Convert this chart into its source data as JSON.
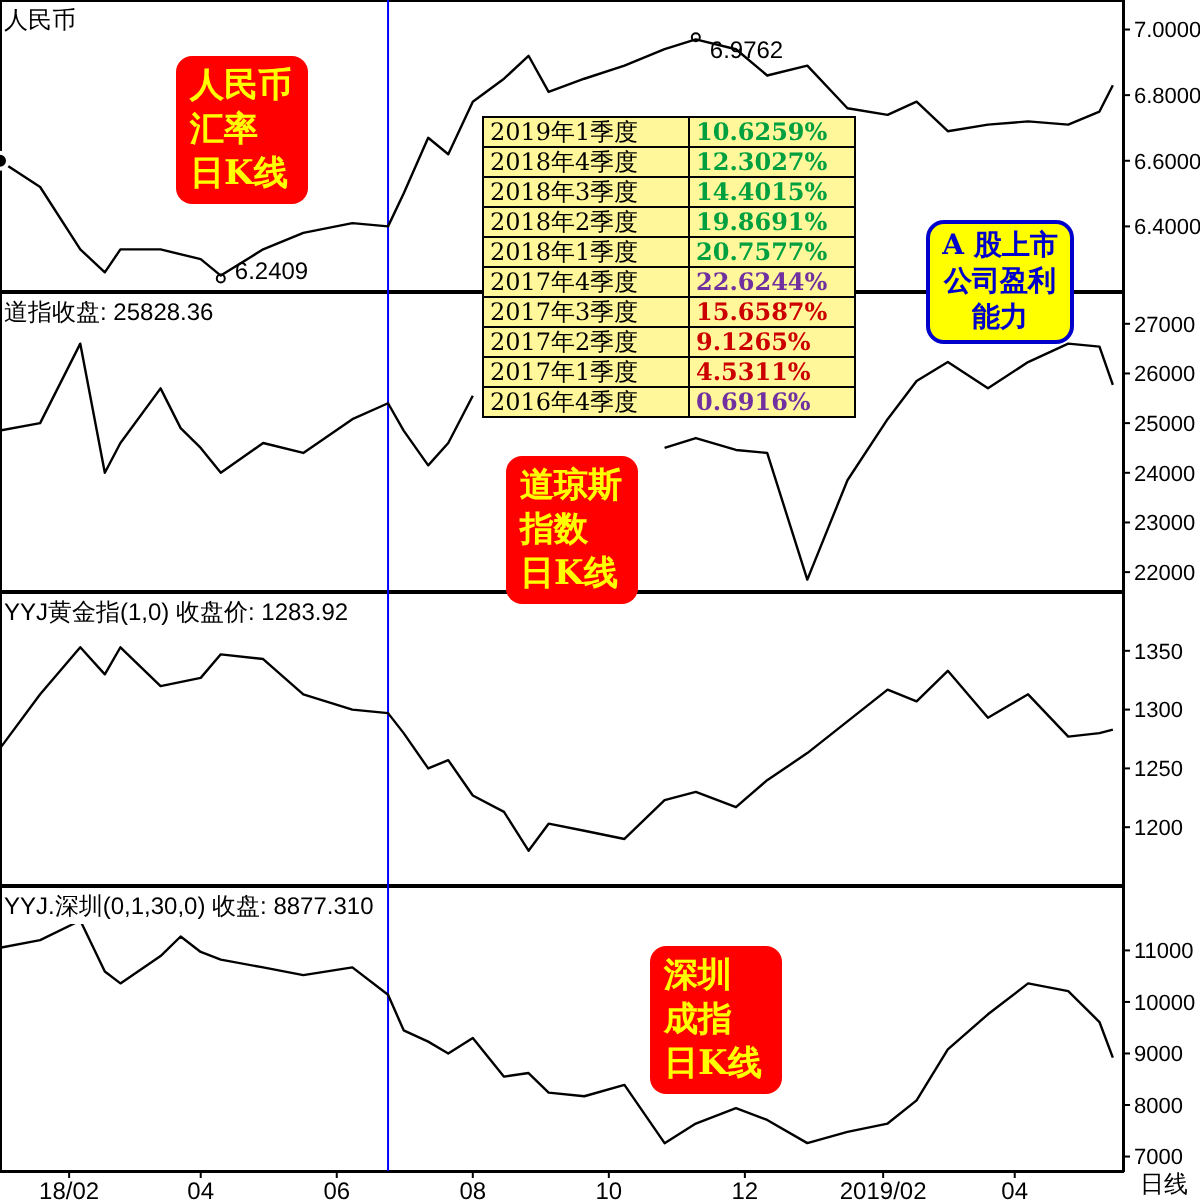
{
  "chart_data": [
    {
      "type": "line",
      "title": "人民币",
      "annotations": [
        "人民币汇率日K线",
        {
          "text": "6.9762",
          "x": "2018-11-09",
          "y": 6.9762
        },
        {
          "text": "6.2409",
          "x": "2018-04-10",
          "y": 6.2409
        }
      ],
      "x": [
        "2018-01-01",
        "2018-01-19",
        "2018-02-06",
        "2018-02-17",
        "2018-02-24",
        "2018-03-14",
        "2018-04-01",
        "2018-04-10",
        "2018-04-29",
        "2018-05-17",
        "2018-06-08",
        "2018-06-24",
        "2018-07-01",
        "2018-07-12",
        "2018-07-21",
        "2018-08-01",
        "2018-08-15",
        "2018-08-26",
        "2018-09-04",
        "2018-09-20",
        "2018-10-08",
        "2018-10-26",
        "2018-11-09",
        "2018-11-27",
        "2018-12-11",
        "2018-12-29",
        "2019-01-16",
        "2019-02-03",
        "2019-02-16",
        "2019-03-02",
        "2019-03-20",
        "2019-04-07",
        "2019-04-25",
        "2019-05-09",
        "2019-05-15"
      ],
      "series": [
        {
          "color": "#000000",
          "values": [
            6.6,
            6.52,
            6.33,
            6.26,
            6.33,
            6.33,
            6.3,
            6.25,
            6.33,
            6.38,
            6.41,
            6.4,
            6.5,
            6.67,
            6.62,
            6.78,
            6.85,
            6.92,
            6.81,
            6.85,
            6.89,
            6.94,
            6.97,
            6.94,
            6.86,
            6.89,
            6.76,
            6.74,
            6.78,
            6.69,
            6.71,
            6.72,
            6.71,
            6.75,
            6.83
          ]
        }
      ],
      "xlim": [
        "2018-01-01",
        "2019-05-20"
      ],
      "ylim": [
        6.2,
        7.09
      ],
      "yticks": [
        {
          "value": 6.4,
          "label": "6.4000"
        },
        {
          "value": 6.6,
          "label": "6.6000"
        },
        {
          "value": 6.8,
          "label": "6.8000"
        },
        {
          "value": 7,
          "label": "7.0000"
        }
      ],
      "ref_lines": [
        {
          "axis": "x",
          "value": "2018-06-24",
          "color": "#0000ff"
        }
      ],
      "tick_labels": "y",
      "marker": "none"
    },
    {
      "type": "line",
      "title": "道指收盘: 25828.36",
      "annotations": [
        "道琼斯指数日K线"
      ],
      "x": [
        "2018-01-01",
        "2018-01-19",
        "2018-02-06",
        "2018-02-17",
        "2018-02-24",
        "2018-03-14",
        "2018-03-23",
        "2018-04-01",
        "2018-04-10",
        "2018-04-29",
        "2018-05-17",
        "2018-06-08",
        "2018-06-24",
        "2018-07-01",
        "2018-07-12",
        "2018-07-21",
        "2018-08-01",
        "2018-08-15",
        "2018-08-26",
        "2018-09-04",
        "2018-09-20",
        "2018-10-08",
        "2018-10-26",
        "2018-11-09",
        "2018-11-27",
        "2018-12-11",
        "2018-12-29",
        "2019-01-16",
        "2019-02-03",
        "2019-02-16",
        "2019-03-02",
        "2019-03-20",
        "2019-04-07",
        "2019-04-25",
        "2019-05-09",
        "2019-05-15"
      ],
      "series": [
        {
          "color": "#000000",
          "values": [
            24850,
            25000,
            26600,
            24000,
            24600,
            25700,
            24900,
            24500,
            24000,
            24600,
            24400,
            25080,
            25400,
            24850,
            24150,
            24600,
            25550,
            null,
            null,
            null,
            null,
            null,
            24500,
            24700,
            24460,
            24400,
            21850,
            23850,
            25080,
            25850,
            26230,
            25700,
            26230,
            26600,
            26540,
            25770
          ]
        }
      ],
      "xlim": [
        "2018-01-01",
        "2019-05-20"
      ],
      "ylim": [
        21600,
        27640
      ],
      "yticks": [
        22000,
        23000,
        24000,
        25000,
        26000,
        27000
      ],
      "ref_lines": [
        {
          "axis": "x",
          "value": "2018-06-24",
          "color": "#0000ff"
        }
      ],
      "tick_labels": "y",
      "marker": "none"
    },
    {
      "type": "line",
      "title": "YYJ黄金指(1,0) 收盘价: 1283.92",
      "x": [
        "2018-01-01",
        "2018-01-19",
        "2018-02-06",
        "2018-02-17",
        "2018-02-24",
        "2018-03-14",
        "2018-04-01",
        "2018-04-10",
        "2018-04-29",
        "2018-05-17",
        "2018-06-08",
        "2018-06-24",
        "2018-07-01",
        "2018-07-12",
        "2018-07-21",
        "2018-08-01",
        "2018-08-15",
        "2018-08-26",
        "2018-09-04",
        "2018-09-20",
        "2018-10-08",
        "2018-10-26",
        "2018-11-09",
        "2018-11-27",
        "2018-12-11",
        "2018-12-29",
        "2019-01-16",
        "2019-02-03",
        "2019-02-16",
        "2019-03-02",
        "2019-03-20",
        "2019-04-07",
        "2019-04-25",
        "2019-05-09",
        "2019-05-15"
      ],
      "series": [
        {
          "color": "#000000",
          "values": [
            1267,
            1313,
            1353,
            1330,
            1353,
            1320,
            1327,
            1347,
            1343,
            1313,
            1300,
            1297,
            1280,
            1250,
            1257,
            1227,
            1213,
            1180,
            1203,
            1197,
            1190,
            1223,
            1230,
            1217,
            1240,
            1263,
            1290,
            1317,
            1307,
            1333,
            1293,
            1313,
            1277,
            1280,
            1283
          ]
        }
      ],
      "xlim": [
        "2018-01-01",
        "2019-05-20"
      ],
      "ylim": [
        1150,
        1400
      ],
      "yticks": [
        1200,
        1250,
        1300,
        1350
      ],
      "ref_lines": [
        {
          "axis": "x",
          "value": "2018-06-24",
          "color": "#0000ff"
        }
      ],
      "tick_labels": "y",
      "marker": "none"
    },
    {
      "type": "line",
      "title": "YYJ.深圳(0,1,30,0) 收盘: 8877.310",
      "xlabel": "日线",
      "annotations": [
        "深圳成指日K线"
      ],
      "x": [
        "2018-01-01",
        "2018-01-19",
        "2018-02-06",
        "2018-02-17",
        "2018-02-24",
        "2018-03-14",
        "2018-03-23",
        "2018-04-01",
        "2018-04-10",
        "2018-04-29",
        "2018-05-17",
        "2018-06-08",
        "2018-06-24",
        "2018-07-01",
        "2018-07-12",
        "2018-07-21",
        "2018-08-01",
        "2018-08-15",
        "2018-08-26",
        "2018-09-04",
        "2018-09-20",
        "2018-10-08",
        "2018-10-26",
        "2018-11-09",
        "2018-11-27",
        "2018-12-11",
        "2018-12-29",
        "2019-01-16",
        "2019-02-03",
        "2019-02-16",
        "2019-03-02",
        "2019-03-20",
        "2019-04-07",
        "2019-04-25",
        "2019-05-09",
        "2019-05-15"
      ],
      "series": [
        {
          "color": "#000000",
          "values": [
            11050,
            11200,
            11580,
            10590,
            10360,
            10890,
            11270,
            10970,
            10820,
            10670,
            10520,
            10670,
            10140,
            9450,
            9230,
            9000,
            9300,
            8550,
            8620,
            8240,
            8170,
            8390,
            7260,
            7640,
            7940,
            7710,
            7260,
            7480,
            7640,
            8090,
            9080,
            9760,
            10360,
            10210,
            9610,
            8920
          ]
        }
      ],
      "xlim": [
        "2018-01-01",
        "2019-05-20"
      ],
      "xticks": [
        {
          "value": "2018-02-01",
          "label": "18/02"
        },
        {
          "value": "2018-04-01",
          "label": "04"
        },
        {
          "value": "2018-06-01",
          "label": "06"
        },
        {
          "value": "2018-08-01",
          "label": "08"
        },
        {
          "value": "2018-10-01",
          "label": "10"
        },
        {
          "value": "2018-12-01",
          "label": "12"
        },
        {
          "value": "2019-02-01",
          "label": "2019/02"
        },
        {
          "value": "2019-04-01",
          "label": "04"
        }
      ],
      "ylim": [
        6700,
        12250
      ],
      "yticks": [
        7000,
        8000,
        9000,
        10000,
        11000
      ],
      "ref_lines": [
        {
          "axis": "x",
          "value": "2018-06-24",
          "color": "#0000ff"
        }
      ],
      "marker": "none"
    },
    {
      "type": "other",
      "title": "A 股上市公司盈利能力",
      "categories": [
        "2019年1季度",
        "2018年4季度",
        "2018年3季度",
        "2018年2季度",
        "2018年1季度",
        "2017年4季度",
        "2017年3季度",
        "2017年2季度",
        "2017年1季度",
        "2016年4季度"
      ],
      "value_labels": [
        "10.6259%",
        "12.3027%",
        "14.4015%",
        "19.8691%",
        "20.7577%",
        "22.6244%",
        "15.6587%",
        "9.1265%",
        "4.5311%",
        "0.6916%"
      ],
      "colors": [
        "#00a040",
        "#00a040",
        "#00a040",
        "#00a040",
        "#00a040",
        "#7030a0",
        "#cc0000",
        "#cc0000",
        "#cc0000",
        "#7030a0"
      ]
    }
  ]
}
